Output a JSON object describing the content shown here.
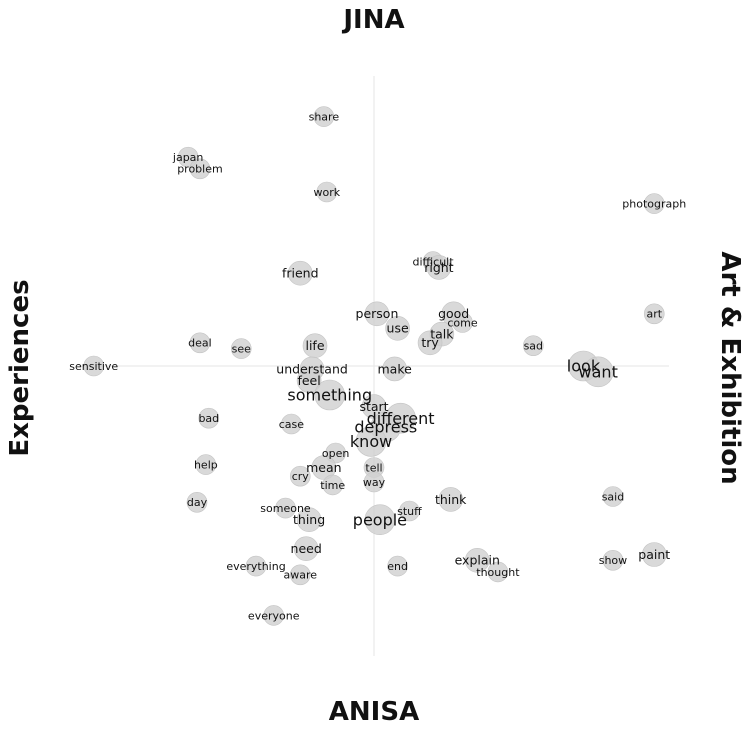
{
  "chart_data": {
    "type": "scatter",
    "poles": {
      "top": "JINA",
      "bottom": "ANISA",
      "left": "Experiences",
      "right": "Art & Exhibition"
    },
    "xlim": [
      -1,
      1
    ],
    "ylim": [
      -1,
      1
    ],
    "grid": false,
    "points": [
      {
        "word": "share",
        "x": -0.17,
        "y": 0.86,
        "size": 1
      },
      {
        "word": "japan",
        "x": -0.63,
        "y": 0.72,
        "size": 1
      },
      {
        "word": "problem",
        "x": -0.59,
        "y": 0.68,
        "size": 1
      },
      {
        "word": "work",
        "x": -0.16,
        "y": 0.6,
        "size": 1
      },
      {
        "word": "photograph",
        "x": 0.95,
        "y": 0.56,
        "size": 1
      },
      {
        "word": "difficult",
        "x": 0.2,
        "y": 0.36,
        "size": 1
      },
      {
        "word": "right",
        "x": 0.22,
        "y": 0.34,
        "size": 2
      },
      {
        "word": "friend",
        "x": -0.25,
        "y": 0.32,
        "size": 2
      },
      {
        "word": "person",
        "x": 0.01,
        "y": 0.18,
        "size": 2
      },
      {
        "word": "good",
        "x": 0.27,
        "y": 0.18,
        "size": 2
      },
      {
        "word": "use",
        "x": 0.08,
        "y": 0.13,
        "size": 2
      },
      {
        "word": "come",
        "x": 0.3,
        "y": 0.15,
        "size": 1
      },
      {
        "word": "art",
        "x": 0.95,
        "y": 0.18,
        "size": 1
      },
      {
        "word": "talk",
        "x": 0.23,
        "y": 0.11,
        "size": 2
      },
      {
        "word": "try",
        "x": 0.19,
        "y": 0.08,
        "size": 2
      },
      {
        "word": "deal",
        "x": -0.59,
        "y": 0.08,
        "size": 1
      },
      {
        "word": "life",
        "x": -0.2,
        "y": 0.07,
        "size": 2
      },
      {
        "word": "see",
        "x": -0.45,
        "y": 0.06,
        "size": 1
      },
      {
        "word": "sad",
        "x": 0.54,
        "y": 0.07,
        "size": 1
      },
      {
        "word": "look",
        "x": 0.71,
        "y": 0.0,
        "size": 3
      },
      {
        "word": "want",
        "x": 0.76,
        "y": -0.02,
        "size": 3
      },
      {
        "word": "sensitive",
        "x": -0.95,
        "y": 0.0,
        "size": 1
      },
      {
        "word": "understand",
        "x": -0.21,
        "y": -0.01,
        "size": 2
      },
      {
        "word": "make",
        "x": 0.07,
        "y": -0.01,
        "size": 2
      },
      {
        "word": "feel",
        "x": -0.22,
        "y": -0.05,
        "size": 2
      },
      {
        "word": "something",
        "x": -0.15,
        "y": -0.1,
        "size": 3
      },
      {
        "word": "start",
        "x": 0.0,
        "y": -0.14,
        "size": 2
      },
      {
        "word": "different",
        "x": 0.09,
        "y": -0.18,
        "size": 3
      },
      {
        "word": "bad",
        "x": -0.56,
        "y": -0.18,
        "size": 1
      },
      {
        "word": "case",
        "x": -0.28,
        "y": -0.2,
        "size": 1
      },
      {
        "word": "depress",
        "x": 0.04,
        "y": -0.21,
        "size": 3
      },
      {
        "word": "know",
        "x": -0.01,
        "y": -0.26,
        "size": 3
      },
      {
        "word": "open",
        "x": -0.13,
        "y": -0.3,
        "size": 1
      },
      {
        "word": "help",
        "x": -0.57,
        "y": -0.34,
        "size": 1
      },
      {
        "word": "mean",
        "x": -0.17,
        "y": -0.35,
        "size": 2
      },
      {
        "word": "tell",
        "x": 0.0,
        "y": -0.35,
        "size": 1
      },
      {
        "word": "cry",
        "x": -0.25,
        "y": -0.38,
        "size": 1
      },
      {
        "word": "way",
        "x": 0.0,
        "y": -0.4,
        "size": 1
      },
      {
        "word": "time",
        "x": -0.14,
        "y": -0.41,
        "size": 1
      },
      {
        "word": "think",
        "x": 0.26,
        "y": -0.46,
        "size": 2
      },
      {
        "word": "said",
        "x": 0.81,
        "y": -0.45,
        "size": 1
      },
      {
        "word": "day",
        "x": -0.6,
        "y": -0.47,
        "size": 1
      },
      {
        "word": "someone",
        "x": -0.3,
        "y": -0.49,
        "size": 1
      },
      {
        "word": "stuff",
        "x": 0.12,
        "y": -0.5,
        "size": 1
      },
      {
        "word": "thing",
        "x": -0.22,
        "y": -0.53,
        "size": 2
      },
      {
        "word": "people",
        "x": 0.02,
        "y": -0.53,
        "size": 3
      },
      {
        "word": "need",
        "x": -0.23,
        "y": -0.63,
        "size": 2
      },
      {
        "word": "explain",
        "x": 0.35,
        "y": -0.67,
        "size": 2
      },
      {
        "word": "paint",
        "x": 0.95,
        "y": -0.65,
        "size": 2
      },
      {
        "word": "show",
        "x": 0.81,
        "y": -0.67,
        "size": 1
      },
      {
        "word": "everything",
        "x": -0.4,
        "y": -0.69,
        "size": 1
      },
      {
        "word": "end",
        "x": 0.08,
        "y": -0.69,
        "size": 1
      },
      {
        "word": "thought",
        "x": 0.42,
        "y": -0.71,
        "size": 1
      },
      {
        "word": "aware",
        "x": -0.25,
        "y": -0.72,
        "size": 1
      },
      {
        "word": "everyone",
        "x": -0.34,
        "y": -0.86,
        "size": 1
      }
    ]
  }
}
